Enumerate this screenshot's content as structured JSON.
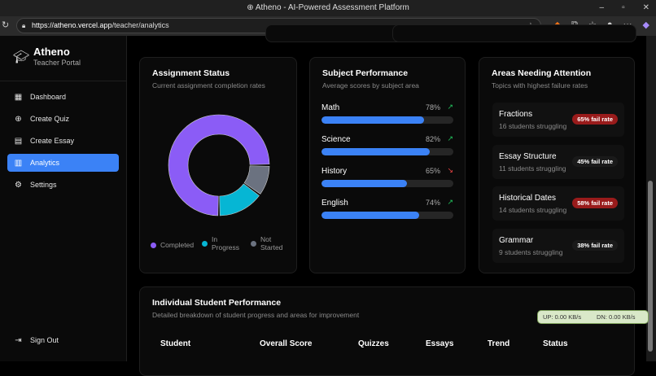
{
  "browser": {
    "title": "Atheno - AI-Powered Assessment Platform",
    "url_host": "https://atheno.vercel.app",
    "url_path": "/teacher/analytics"
  },
  "sidebar": {
    "brand": "Atheno",
    "subtitle": "Teacher Portal",
    "items": [
      {
        "label": "Dashboard",
        "icon": "grid-icon"
      },
      {
        "label": "Create Quiz",
        "icon": "plus-circle-icon"
      },
      {
        "label": "Create Essay",
        "icon": "document-icon"
      },
      {
        "label": "Analytics",
        "icon": "bar-chart-icon",
        "active": true
      },
      {
        "label": "Settings",
        "icon": "gear-icon"
      }
    ],
    "signout": "Sign Out"
  },
  "assignment": {
    "title": "Assignment Status",
    "subtitle": "Current assignment completion rates",
    "legend": [
      "Completed",
      "In Progress",
      "Not Started"
    ]
  },
  "chart_data": {
    "type": "pie",
    "donut": true,
    "categories": [
      "Completed",
      "In Progress",
      "Not Started"
    ],
    "values": [
      75,
      15,
      10
    ],
    "colors": [
      "#8b5cf6",
      "#06b6d4",
      "#6b7280"
    ]
  },
  "subject": {
    "title": "Subject Performance",
    "subtitle": "Average scores by subject area",
    "items": [
      {
        "name": "Math",
        "score": 78,
        "label": "78%",
        "trend": "up"
      },
      {
        "name": "Science",
        "score": 82,
        "label": "82%",
        "trend": "up"
      },
      {
        "name": "History",
        "score": 65,
        "label": "65%",
        "trend": "down"
      },
      {
        "name": "English",
        "score": 74,
        "label": "74%",
        "trend": "up"
      }
    ]
  },
  "areas": {
    "title": "Areas Needing Attention",
    "subtitle": "Topics with highest failure rates",
    "items": [
      {
        "name": "Fractions",
        "students": "16 students struggling",
        "rate": "65% fail rate",
        "high": true
      },
      {
        "name": "Essay Structure",
        "students": "11 students struggling",
        "rate": "45% fail rate",
        "high": false
      },
      {
        "name": "Historical Dates",
        "students": "14 students struggling",
        "rate": "58% fail rate",
        "high": true
      },
      {
        "name": "Grammar",
        "students": "9 students struggling",
        "rate": "38% fail rate",
        "high": false
      }
    ]
  },
  "students": {
    "title": "Individual Student Performance",
    "subtitle": "Detailed breakdown of student progress and areas for improvement",
    "columns": [
      "Student",
      "Overall Score",
      "Quizzes",
      "Essays",
      "Trend",
      "Status"
    ]
  },
  "netmeter": {
    "up": "UP: 0.00 KB/s",
    "down": "DN: 0.00 KB/s"
  },
  "colors": {
    "accent": "#3b82f6",
    "danger": "#991b1b",
    "up": "#22c55e",
    "down": "#ef4444"
  }
}
